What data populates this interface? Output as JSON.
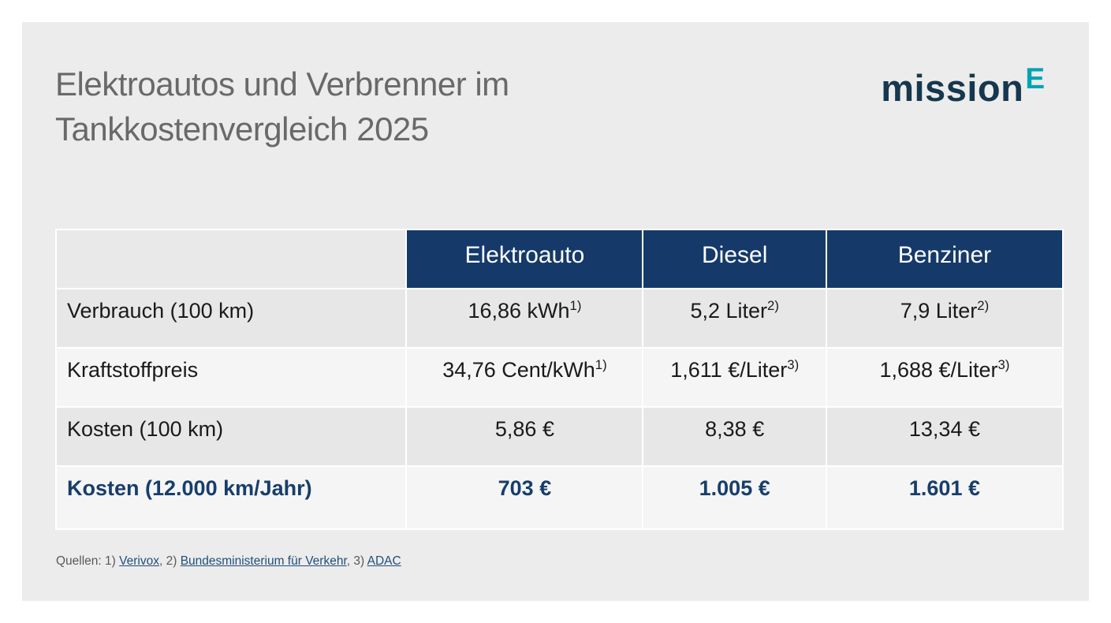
{
  "header": {
    "title_line1": "Elektroautos und Verbrenner im",
    "title_line2": "Tankkostenvergleich 2025"
  },
  "logo": {
    "text": "mission",
    "superscript": "E"
  },
  "colors": {
    "card_background": "#ececec",
    "header_navy": "#153A69",
    "logo_navy": "#16374E",
    "logo_teal": "#00A3B5",
    "bold_row_text": "#173E6B",
    "link_navy": "#1F4E79",
    "title_gray": "#696969",
    "band_dark": "#e7e7e7",
    "band_light": "#f5f5f5"
  },
  "table": {
    "columns": [
      "Elektroauto",
      "Diesel",
      "Benziner"
    ],
    "rows": [
      {
        "label": "Verbrauch (100 km)",
        "bold": false,
        "values": [
          {
            "text": "16,86 kWh",
            "sup": "1)"
          },
          {
            "text": "5,2 Liter",
            "sup": "2)"
          },
          {
            "text": "7,9 Liter",
            "sup": "2)"
          }
        ]
      },
      {
        "label": "Kraftstoffpreis",
        "bold": false,
        "values": [
          {
            "text": "34,76 Cent/kWh",
            "sup": "1)"
          },
          {
            "text": "1,611 €/Liter",
            "sup": "3)"
          },
          {
            "text": "1,688 €/Liter",
            "sup": "3)"
          }
        ]
      },
      {
        "label": "Kosten (100 km)",
        "bold": false,
        "values": [
          {
            "text": "5,86 €",
            "sup": ""
          },
          {
            "text": "8,38 €",
            "sup": ""
          },
          {
            "text": "13,34 €",
            "sup": ""
          }
        ]
      },
      {
        "label": "Kosten (12.000 km/Jahr)",
        "bold": true,
        "values": [
          {
            "text": "703 €",
            "sup": ""
          },
          {
            "text": "1.005 €",
            "sup": ""
          },
          {
            "text": "1.601 €",
            "sup": ""
          }
        ]
      }
    ]
  },
  "footer": {
    "prefix": "Quellen: 1) ",
    "sep2": ", 2) ",
    "sep3": ", 3) ",
    "links": [
      "Verivox",
      "Bundesministerium für Verkehr",
      "ADAC"
    ]
  },
  "chart_data": {
    "type": "table",
    "title": "Elektroautos und Verbrenner im Tankkostenvergleich 2025",
    "columns": [
      "",
      "Elektroauto",
      "Diesel",
      "Benziner"
    ],
    "rows": [
      [
        "Verbrauch (100 km)",
        "16,86 kWh¹⁾",
        "5,2 Liter²⁾",
        "7,9 Liter²⁾"
      ],
      [
        "Kraftstoffpreis",
        "34,76 Cent/kWh¹⁾",
        "1,611 €/Liter³⁾",
        "1,688 €/Liter³⁾"
      ],
      [
        "Kosten (100 km)",
        "5,86 €",
        "8,38 €",
        "13,34 €"
      ],
      [
        "Kosten (12.000 km/Jahr)",
        "703 €",
        "1.005 €",
        "1.601 €"
      ]
    ],
    "footnotes": [
      "1) Verivox",
      "2) Bundesministerium für Verkehr",
      "3) ADAC"
    ]
  }
}
